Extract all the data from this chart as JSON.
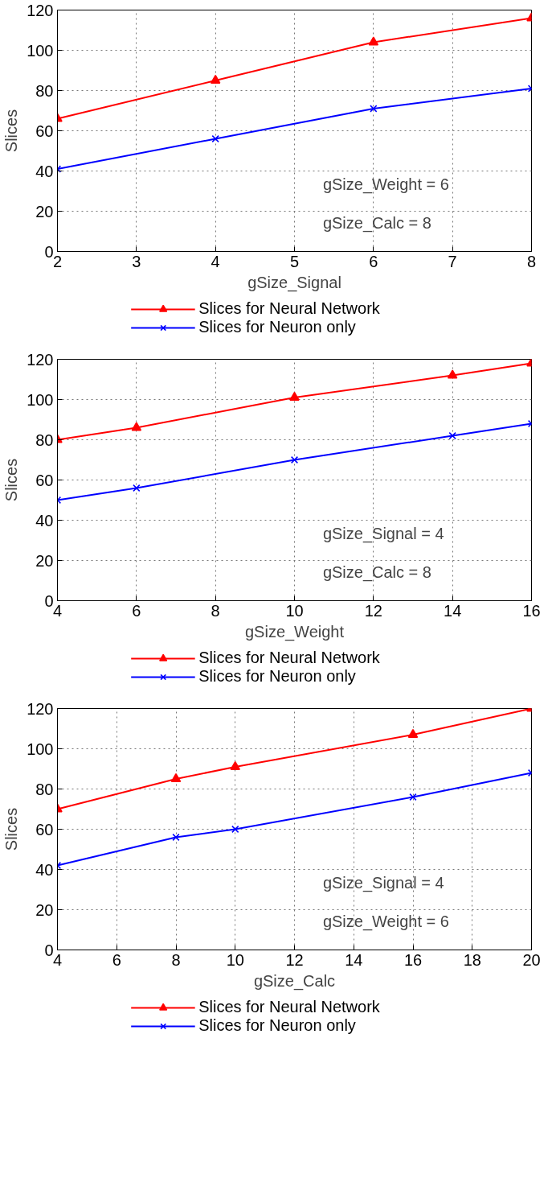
{
  "chart_data": [
    {
      "type": "line",
      "xlabel": "gSize_Signal",
      "ylabel": "Slices",
      "x": [
        2,
        4,
        6,
        8
      ],
      "xlim": [
        2,
        8
      ],
      "xticks": [
        2,
        3,
        4,
        5,
        6,
        7,
        8
      ],
      "ylim": [
        0,
        120
      ],
      "yticks": [
        0,
        20,
        40,
        60,
        80,
        100,
        120
      ],
      "grid": true,
      "legend": "bottom",
      "annotations": [
        "gSize_Weight = 6",
        "gSize_Calc = 8"
      ],
      "series": [
        {
          "name": "Slices for Neural Network",
          "color": "#ff0000",
          "marker": "triangle",
          "values": [
            66,
            85,
            104,
            116
          ]
        },
        {
          "name": "Slices for Neuron only",
          "color": "#0000ff",
          "marker": "cross",
          "values": [
            41,
            56,
            71,
            81
          ]
        }
      ]
    },
    {
      "type": "line",
      "xlabel": "gSize_Weight",
      "ylabel": "Slices",
      "x": [
        4,
        6,
        10,
        14,
        16
      ],
      "xlim": [
        4,
        16
      ],
      "xticks": [
        4,
        6,
        8,
        10,
        12,
        14,
        16
      ],
      "ylim": [
        0,
        120
      ],
      "yticks": [
        0,
        20,
        40,
        60,
        80,
        100,
        120
      ],
      "grid": true,
      "legend": "bottom",
      "annotations": [
        "gSize_Signal = 4",
        "gSize_Calc = 8"
      ],
      "series": [
        {
          "name": "Slices for Neural Network",
          "color": "#ff0000",
          "marker": "triangle",
          "values": [
            80,
            86,
            101,
            112,
            118
          ]
        },
        {
          "name": "Slices for Neuron only",
          "color": "#0000ff",
          "marker": "cross",
          "values": [
            50,
            56,
            70,
            82,
            88
          ]
        }
      ]
    },
    {
      "type": "line",
      "xlabel": "gSize_Calc",
      "ylabel": "Slices",
      "x": [
        4,
        8,
        10,
        16,
        20
      ],
      "xlim": [
        4,
        20
      ],
      "xticks": [
        4,
        6,
        8,
        10,
        12,
        14,
        16,
        18,
        20
      ],
      "ylim": [
        0,
        120
      ],
      "yticks": [
        0,
        20,
        40,
        60,
        80,
        100,
        120
      ],
      "grid": true,
      "legend": "bottom",
      "annotations": [
        "gSize_Signal = 4",
        "gSize_Weight = 6"
      ],
      "series": [
        {
          "name": "Slices for Neural Network",
          "color": "#ff0000",
          "marker": "triangle",
          "values": [
            70,
            85,
            91,
            107,
            120
          ]
        },
        {
          "name": "Slices for Neuron only",
          "color": "#0000ff",
          "marker": "cross",
          "values": [
            42,
            56,
            60,
            76,
            88
          ]
        }
      ]
    }
  ]
}
